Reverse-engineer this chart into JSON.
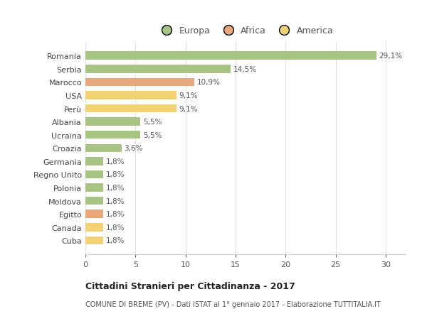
{
  "countries": [
    "Romania",
    "Serbia",
    "Marocco",
    "USA",
    "Perù",
    "Albania",
    "Ucraina",
    "Croazia",
    "Germania",
    "Regno Unito",
    "Polonia",
    "Moldova",
    "Egitto",
    "Canada",
    "Cuba"
  ],
  "values": [
    29.1,
    14.5,
    10.9,
    9.1,
    9.1,
    5.5,
    5.5,
    3.6,
    1.8,
    1.8,
    1.8,
    1.8,
    1.8,
    1.8,
    1.8
  ],
  "labels": [
    "29,1%",
    "14,5%",
    "10,9%",
    "9,1%",
    "9,1%",
    "5,5%",
    "5,5%",
    "3,6%",
    "1,8%",
    "1,8%",
    "1,8%",
    "1,8%",
    "1,8%",
    "1,8%",
    "1,8%"
  ],
  "colors": [
    "#a8c482",
    "#a8c482",
    "#e9a87c",
    "#f2d272",
    "#f2d272",
    "#a8c482",
    "#a8c482",
    "#a8c482",
    "#a8c482",
    "#a8c482",
    "#a8c482",
    "#a8c482",
    "#e9a87c",
    "#f2d272",
    "#f2d272"
  ],
  "legend": [
    {
      "label": "Europa",
      "color": "#a8c482"
    },
    {
      "label": "Africa",
      "color": "#e9a87c"
    },
    {
      "label": "America",
      "color": "#f2d272"
    }
  ],
  "xlim": [
    0,
    32
  ],
  "xticks": [
    0,
    5,
    10,
    15,
    20,
    25,
    30
  ],
  "title": "Cittadini Stranieri per Cittadinanza - 2017",
  "subtitle": "COMUNE DI BREME (PV) - Dati ISTAT al 1° gennaio 2017 - Elaborazione TUTTITALIA.IT",
  "background_color": "#ffffff",
  "grid_color": "#e0e0e0"
}
